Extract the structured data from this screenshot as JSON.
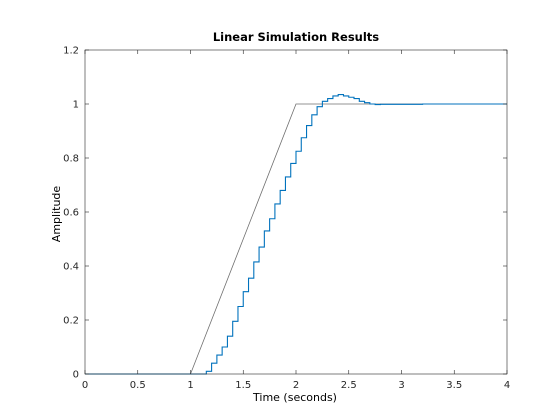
{
  "chart_data": {
    "type": "line",
    "title": "Linear Simulation Results",
    "xlabel": "Time (seconds)",
    "ylabel": "Amplitude",
    "xlim": [
      0,
      4
    ],
    "ylim": [
      0,
      1.2
    ],
    "x_ticks": [
      "0",
      "0.5",
      "1",
      "1.5",
      "2",
      "2.5",
      "3",
      "3.5",
      "4"
    ],
    "y_ticks": [
      "0",
      "0.2",
      "0.4",
      "0.6",
      "0.8",
      "1",
      "1.2"
    ],
    "grid": false,
    "colors": {
      "input": "#707070",
      "response": "#0072BD",
      "axes": "#262626"
    },
    "series": [
      {
        "role": "input",
        "style": "line",
        "x": [
          0,
          1,
          2,
          4
        ],
        "y": [
          0,
          0,
          1,
          1
        ]
      },
      {
        "role": "response",
        "style": "stairs",
        "x": [
          0,
          1.15,
          1.2,
          1.25,
          1.3,
          1.35,
          1.4,
          1.45,
          1.5,
          1.55,
          1.6,
          1.65,
          1.7,
          1.75,
          1.8,
          1.85,
          1.9,
          1.95,
          2.0,
          2.05,
          2.1,
          2.15,
          2.2,
          2.25,
          2.3,
          2.35,
          2.4,
          2.45,
          2.5,
          2.55,
          2.6,
          2.65,
          2.7,
          2.75,
          2.8,
          3.2,
          4.0
        ],
        "y": [
          0,
          0.01,
          0.04,
          0.07,
          0.1,
          0.14,
          0.195,
          0.25,
          0.305,
          0.355,
          0.415,
          0.47,
          0.53,
          0.575,
          0.63,
          0.68,
          0.73,
          0.78,
          0.825,
          0.875,
          0.92,
          0.96,
          0.99,
          1.01,
          1.02,
          1.03,
          1.035,
          1.03,
          1.025,
          1.02,
          1.01,
          1.005,
          1.0,
          0.998,
          0.999,
          1.0,
          1.0
        ]
      }
    ]
  }
}
